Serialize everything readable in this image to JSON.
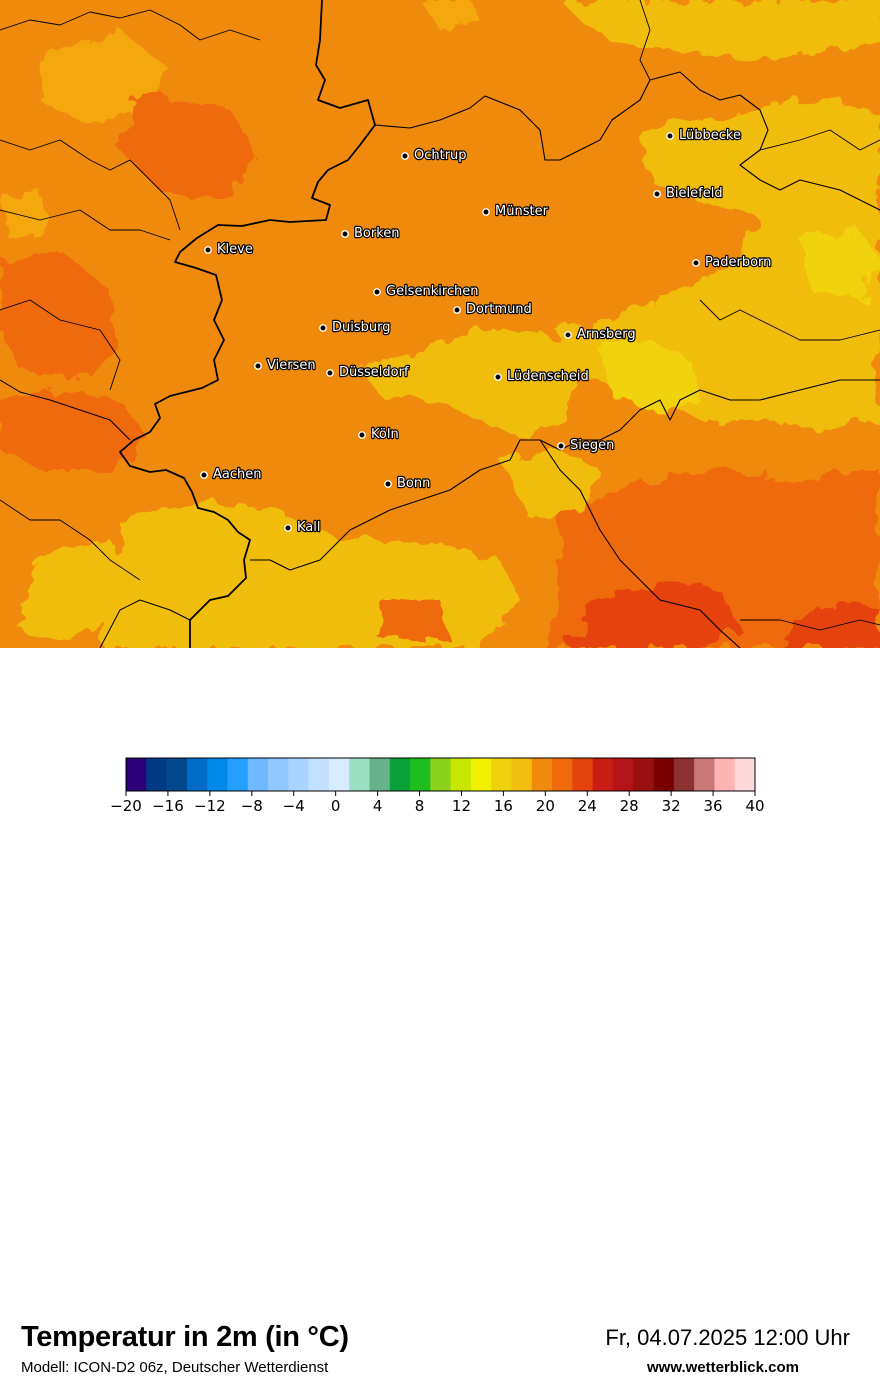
{
  "title": "Temperatur in 2m (in °C)",
  "model": "Modell: ICON-D2 06z, Deutscher Wetterdienst",
  "datetime": "Fr, 04.07.2025 12:00 Uhr",
  "website": "www.wetterblick.com",
  "colors": {
    "base_orange": "#f08a0c",
    "light_orange": "#f5a80e",
    "yellow_orange": "#f1bd0f",
    "yellow": "#f0d20c",
    "dark_orange": "#ee6a0c",
    "red_orange": "#e5430e"
  },
  "cities": [
    {
      "name": "Lübbecke"
    },
    {
      "name": "Ochtrup"
    },
    {
      "name": "Bielefeld"
    },
    {
      "name": "Münster"
    },
    {
      "name": "Borken"
    },
    {
      "name": "Kleve"
    },
    {
      "name": "Paderborn"
    },
    {
      "name": "Gelsenkirchen"
    },
    {
      "name": "Dortmund"
    },
    {
      "name": "Duisburg"
    },
    {
      "name": "Arnsberg"
    },
    {
      "name": "Viersen"
    },
    {
      "name": "Düsseldorf"
    },
    {
      "name": "Lüdenscheid"
    },
    {
      "name": "Köln"
    },
    {
      "name": "Siegen"
    },
    {
      "name": "Aachen"
    },
    {
      "name": "Bonn"
    },
    {
      "name": "Kall"
    }
  ],
  "colorscale": {
    "colors": [
      "#2d0079",
      "#003a84",
      "#00488a",
      "#006cc8",
      "#0088ea",
      "#23a0ff",
      "#70b8ff",
      "#90c8ff",
      "#a8d4ff",
      "#c2e0ff",
      "#d8ecff",
      "#9ce0c4",
      "#66b28a",
      "#0aa038",
      "#1ebe1e",
      "#8cd21e",
      "#c8e600",
      "#f0f000",
      "#f0d20c",
      "#f1bd0f",
      "#f08a0c",
      "#ee6a0c",
      "#e5430e",
      "#c81c14",
      "#b41418",
      "#9a1010",
      "#7a0000",
      "#8c3232",
      "#c87878",
      "#ffb4b4",
      "#ffd8dc"
    ],
    "ticks": [
      "−20",
      "−16",
      "−12",
      "−8",
      "−4",
      "0",
      "4",
      "8",
      "12",
      "16",
      "20",
      "24",
      "28",
      "32",
      "36",
      "40"
    ]
  }
}
